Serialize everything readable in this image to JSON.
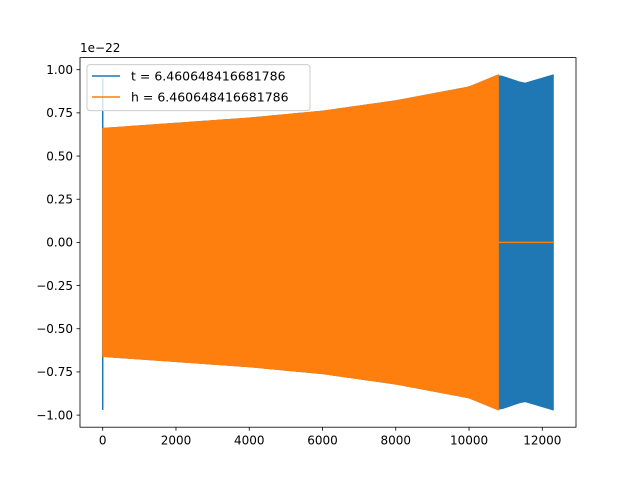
{
  "chart_data": {
    "type": "line",
    "title": "",
    "xlabel": "",
    "ylabel": "",
    "y_offset_label": "1e−22",
    "xlim": [
      -620,
      12920
    ],
    "ylim": [
      -1.07,
      1.07
    ],
    "y_unit_scale": "1e-22",
    "xticks": [
      0,
      2000,
      4000,
      6000,
      8000,
      10000,
      12000
    ],
    "xtick_labels": [
      "0",
      "2000",
      "4000",
      "6000",
      "8000",
      "10000",
      "12000"
    ],
    "yticks": [
      -1.0,
      -0.75,
      -0.5,
      -0.25,
      0.0,
      0.25,
      0.5,
      0.75,
      1.0
    ],
    "ytick_labels": [
      "−1.00",
      "−0.75",
      "−0.50",
      "−0.25",
      "0.00",
      "0.25",
      "0.50",
      "0.75",
      "1.00"
    ],
    "grid": false,
    "legend_position": "top-left",
    "series": [
      {
        "name": "t = 6.460648416681786",
        "color": "#1f77b4",
        "description": "dense oscillation whose amplitude envelope grows from about 0.66 to 0.97, ending near x = 12300",
        "spike": {
          "x": 0,
          "ymin": -0.97,
          "ymax": 0.95
        },
        "envelope_x": [
          0,
          2000,
          4000,
          6000,
          8000,
          10000,
          10800,
          11500,
          12300
        ],
        "envelope_upper": [
          0.66,
          0.69,
          0.72,
          0.76,
          0.82,
          0.9,
          0.97,
          0.92,
          0.97
        ],
        "envelope_lower": [
          -0.66,
          -0.69,
          -0.72,
          -0.76,
          -0.82,
          -0.9,
          -0.97,
          -0.92,
          -0.97
        ],
        "x_end": 12300
      },
      {
        "name": "h = 6.460648416681786",
        "color": "#ff7f0e",
        "description": "dense oscillation from x = 0 to about 10800 with the same growing envelope, then flat at 0 until 12300",
        "envelope_x": [
          0,
          2000,
          4000,
          6000,
          8000,
          10000,
          10800
        ],
        "envelope_upper": [
          0.66,
          0.69,
          0.72,
          0.76,
          0.82,
          0.9,
          0.97
        ],
        "envelope_lower": [
          -0.66,
          -0.69,
          -0.72,
          -0.76,
          -0.82,
          -0.9,
          -0.97
        ],
        "x_cutoff": 10800,
        "flat_after": {
          "x_start": 10800,
          "x_end": 12300,
          "y": 0.0
        }
      }
    ]
  }
}
